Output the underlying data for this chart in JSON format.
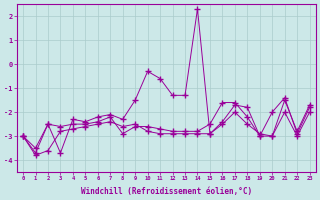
{
  "xlabel": "Windchill (Refroidissement éolien,°C)",
  "bg_color": "#cce8e8",
  "line_color": "#990099",
  "grid_color": "#aacccc",
  "xlim": [
    -0.5,
    23.5
  ],
  "ylim": [
    -4.5,
    2.5
  ],
  "yticks": [
    -4,
    -3,
    -2,
    -1,
    0,
    1,
    2
  ],
  "xticks": [
    0,
    1,
    2,
    3,
    4,
    5,
    6,
    7,
    8,
    9,
    10,
    11,
    12,
    13,
    14,
    15,
    16,
    17,
    18,
    19,
    20,
    21,
    22,
    23
  ],
  "line1_x": [
    0,
    1,
    2,
    3,
    4,
    5,
    6,
    7,
    8,
    9,
    10,
    11,
    12,
    13,
    14,
    15,
    16,
    17,
    18,
    19,
    20,
    21,
    22,
    23
  ],
  "line1_y": [
    -3.0,
    -3.5,
    -2.5,
    -3.7,
    -2.3,
    -2.4,
    -2.2,
    -2.1,
    -2.3,
    -1.5,
    -0.3,
    -0.6,
    -1.3,
    -1.3,
    2.3,
    -2.9,
    -2.4,
    -1.7,
    -1.8,
    -3.0,
    -2.0,
    -1.4,
    -2.9,
    -1.8
  ],
  "line2_x": [
    0,
    1,
    2,
    3,
    4,
    5,
    6,
    7,
    8,
    9,
    10,
    11,
    12,
    13,
    14,
    15,
    16,
    17,
    18,
    19,
    20,
    21,
    22,
    23
  ],
  "line2_y": [
    -3.0,
    -3.7,
    -2.5,
    -2.6,
    -2.5,
    -2.5,
    -2.4,
    -2.2,
    -2.9,
    -2.6,
    -2.6,
    -2.7,
    -2.8,
    -2.8,
    -2.8,
    -2.5,
    -1.6,
    -1.6,
    -2.2,
    -3.0,
    -3.0,
    -1.5,
    -2.8,
    -1.7
  ],
  "line3_x": [
    0,
    1,
    2,
    3,
    4,
    5,
    6,
    7,
    8,
    9,
    10,
    11,
    12,
    13,
    14,
    15,
    16,
    17,
    18,
    19,
    20,
    21,
    22,
    23
  ],
  "line3_y": [
    -3.0,
    -3.8,
    -3.6,
    -2.8,
    -2.7,
    -2.6,
    -2.5,
    -2.4,
    -2.6,
    -2.5,
    -2.8,
    -2.9,
    -2.9,
    -2.9,
    -2.9,
    -2.9,
    -2.5,
    -2.0,
    -2.5,
    -2.9,
    -3.0,
    -2.0,
    -3.0,
    -2.0
  ]
}
